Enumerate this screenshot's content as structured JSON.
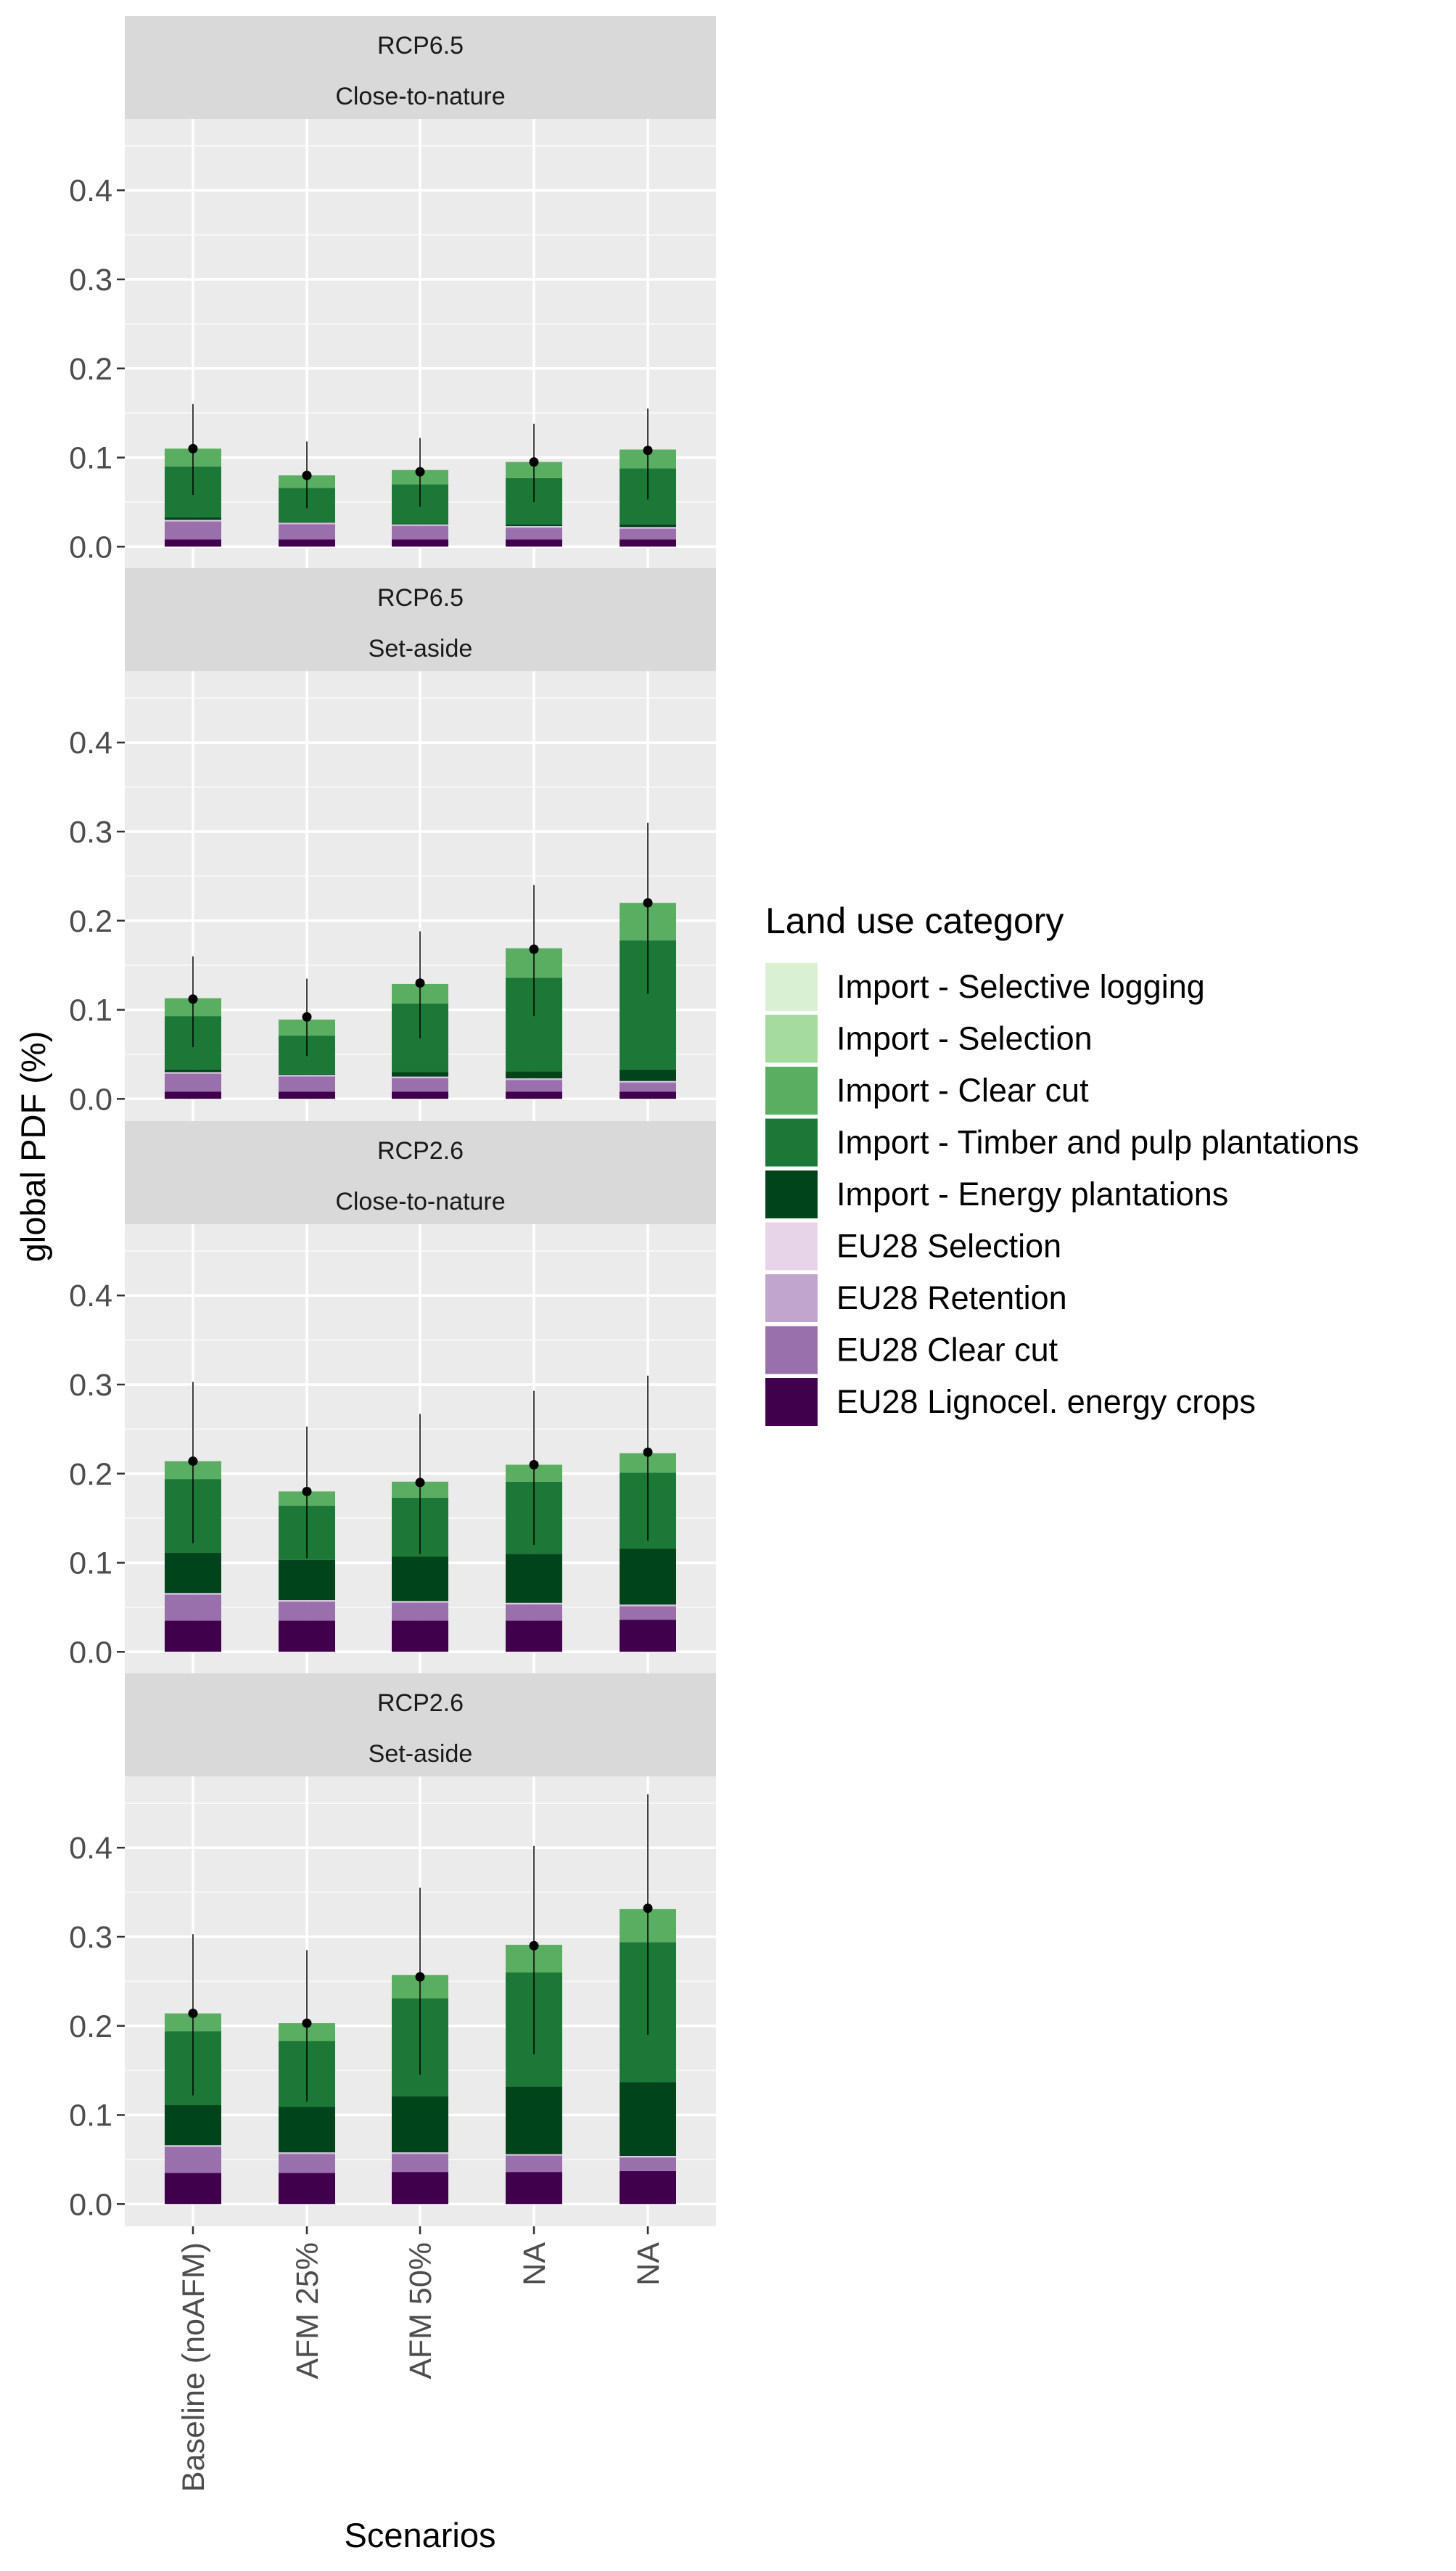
{
  "chart_data": {
    "type": "bar",
    "stacked": true,
    "facets": [
      {
        "line1": "RCP6.5",
        "line2": "Close-to-nature"
      },
      {
        "line1": "RCP6.5",
        "line2": "Set-aside"
      },
      {
        "line1": "RCP2.6",
        "line2": "Close-to-nature"
      },
      {
        "line1": "RCP2.6",
        "line2": "Set-aside"
      }
    ],
    "categories": [
      "Baseline (noAFM)",
      "AFM 25%",
      "AFM 50%",
      "NA",
      "NA"
    ],
    "xlabel": "Scenarios",
    "ylabel": "global PDF (%)",
    "ylim": [
      -0.025,
      0.48
    ],
    "yticks": [
      0.0,
      0.1,
      0.2,
      0.3,
      0.4
    ],
    "ytick_labels": [
      "0.0",
      "0.1",
      "0.2",
      "0.3",
      "0.4"
    ],
    "grid": true,
    "legend": {
      "title": "Land use category",
      "position": "right",
      "order": [
        "Import - Selective logging",
        "Import - Selection",
        "Import - Clear cut",
        "Import - Timber and pulp plantations",
        "Import - Energy plantations",
        "EU28 Selection",
        "EU28 Retention",
        "EU28 Clear cut",
        "EU28 Lignocel. energy crops"
      ]
    },
    "series": [
      {
        "name": "EU28 Lignocel. energy crops",
        "color": "#40004b",
        "values": [
          [
            0.008,
            0.008,
            0.008,
            0.008,
            0.008
          ],
          [
            0.008,
            0.008,
            0.008,
            0.008,
            0.008
          ],
          [
            0.035,
            0.035,
            0.035,
            0.035,
            0.036
          ],
          [
            0.035,
            0.035,
            0.036,
            0.036,
            0.037
          ]
        ]
      },
      {
        "name": "EU28 Clear cut",
        "color": "#9970ab",
        "values": [
          [
            0.02,
            0.017,
            0.015,
            0.013,
            0.012
          ],
          [
            0.02,
            0.017,
            0.015,
            0.013,
            0.01
          ],
          [
            0.029,
            0.021,
            0.02,
            0.018,
            0.015
          ],
          [
            0.029,
            0.021,
            0.02,
            0.018,
            0.015
          ]
        ]
      },
      {
        "name": "EU28 Retention",
        "color": "#c2a5cf",
        "values": [
          [
            0.001,
            0.001,
            0.001,
            0.001,
            0.001
          ],
          [
            0.001,
            0.001,
            0.001,
            0.001,
            0.001
          ],
          [
            0.001,
            0.001,
            0.001,
            0.001,
            0.001
          ],
          [
            0.001,
            0.001,
            0.001,
            0.001,
            0.001
          ]
        ]
      },
      {
        "name": "EU28 Selection",
        "color": "#e7d4e8",
        "values": [
          [
            0.001,
            0.001,
            0.001,
            0.001,
            0.001
          ],
          [
            0.001,
            0.001,
            0.001,
            0.001,
            0.001
          ],
          [
            0.001,
            0.001,
            0.001,
            0.001,
            0.001
          ],
          [
            0.001,
            0.001,
            0.001,
            0.001,
            0.001
          ]
        ]
      },
      {
        "name": "Import - Energy plantations",
        "color": "#00441b",
        "values": [
          [
            0.003,
            0.001,
            0.001,
            0.002,
            0.003
          ],
          [
            0.003,
            0.001,
            0.005,
            0.008,
            0.013
          ],
          [
            0.045,
            0.045,
            0.05,
            0.055,
            0.063
          ],
          [
            0.045,
            0.051,
            0.063,
            0.076,
            0.083
          ]
        ]
      },
      {
        "name": "Import - Timber and pulp plantations",
        "color": "#1b7837",
        "values": [
          [
            0.057,
            0.038,
            0.044,
            0.052,
            0.063
          ],
          [
            0.06,
            0.043,
            0.077,
            0.105,
            0.145
          ],
          [
            0.083,
            0.061,
            0.066,
            0.081,
            0.085
          ],
          [
            0.083,
            0.074,
            0.11,
            0.128,
            0.157
          ]
        ]
      },
      {
        "name": "Import - Clear cut",
        "color": "#5aae61",
        "values": [
          [
            0.02,
            0.014,
            0.016,
            0.018,
            0.021
          ],
          [
            0.02,
            0.018,
            0.022,
            0.033,
            0.042
          ],
          [
            0.02,
            0.016,
            0.018,
            0.019,
            0.022
          ],
          [
            0.02,
            0.02,
            0.026,
            0.031,
            0.037
          ]
        ]
      },
      {
        "name": "Import - Selection",
        "color": "#a6dba0",
        "values": [
          [
            0,
            0,
            0,
            0,
            0
          ],
          [
            0,
            0,
            0,
            0,
            0
          ],
          [
            0,
            0,
            0,
            0,
            0
          ],
          [
            0,
            0,
            0,
            0,
            0
          ]
        ]
      },
      {
        "name": "Import - Selective logging",
        "color": "#d9f0d3",
        "values": [
          [
            0,
            0,
            0,
            0,
            0
          ],
          [
            0,
            0,
            0,
            0,
            0
          ],
          [
            0,
            0,
            0,
            0,
            0
          ],
          [
            0,
            0,
            0,
            0,
            0
          ]
        ]
      }
    ],
    "point_estimate": [
      [
        0.11,
        0.08,
        0.084,
        0.095,
        0.108
      ],
      [
        0.112,
        0.092,
        0.13,
        0.168,
        0.22
      ],
      [
        0.214,
        0.18,
        0.19,
        0.21,
        0.224
      ],
      [
        0.214,
        0.203,
        0.255,
        0.29,
        0.332
      ]
    ],
    "error_low": [
      [
        0.058,
        0.043,
        0.045,
        0.05,
        0.053
      ],
      [
        0.058,
        0.048,
        0.068,
        0.093,
        0.118
      ],
      [
        0.122,
        0.105,
        0.11,
        0.12,
        0.125
      ],
      [
        0.122,
        0.115,
        0.145,
        0.168,
        0.19
      ]
    ],
    "error_high": [
      [
        0.16,
        0.118,
        0.122,
        0.138,
        0.155
      ],
      [
        0.16,
        0.135,
        0.188,
        0.24,
        0.31
      ],
      [
        0.303,
        0.253,
        0.267,
        0.293,
        0.31
      ],
      [
        0.303,
        0.285,
        0.355,
        0.402,
        0.46
      ]
    ]
  }
}
